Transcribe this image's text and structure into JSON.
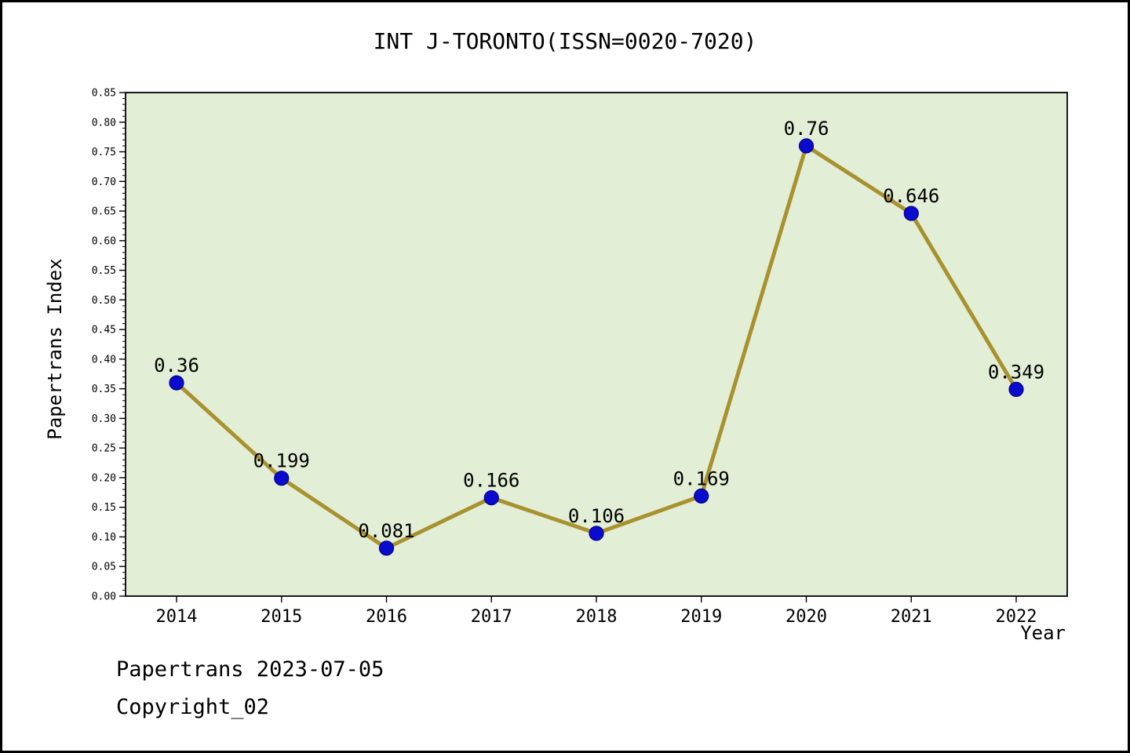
{
  "title": "INT J-TORONTO(ISSN=0020-7020)",
  "footer": {
    "line1": "Papertrans 2023-07-05",
    "line2": "Copyright_02"
  },
  "chart_data": {
    "type": "line",
    "title": "INT J-TORONTO(ISSN=0020-7020)",
    "xlabel": "Year",
    "ylabel": "Papertrans Index",
    "categories": [
      "2014",
      "2015",
      "2016",
      "2017",
      "2018",
      "2019",
      "2020",
      "2021",
      "2022"
    ],
    "values": [
      0.36,
      0.199,
      0.081,
      0.166,
      0.106,
      0.169,
      0.76,
      0.646,
      0.349
    ],
    "point_labels": [
      "0.36",
      "0.199",
      "0.081",
      "0.166",
      "0.106",
      "0.169",
      "0.76",
      "0.646",
      "0.349"
    ],
    "ylim": [
      0.0,
      0.85
    ],
    "ytick_step": 0.05,
    "ytick_labels": [
      "0.00",
      "0.05",
      "0.10",
      "0.15",
      "0.20",
      "0.25",
      "0.30",
      "0.35",
      "0.40",
      "0.45",
      "0.50",
      "0.55",
      "0.60",
      "0.65",
      "0.70",
      "0.75",
      "0.80",
      "0.85"
    ],
    "grid": false,
    "legend": "none",
    "colors": {
      "line": "#a8922e",
      "marker_fill": "#0b0bd0",
      "marker_edge": "#000080",
      "plot_background": "#e3eed7",
      "axis": "#000000",
      "text": "#000000"
    }
  }
}
